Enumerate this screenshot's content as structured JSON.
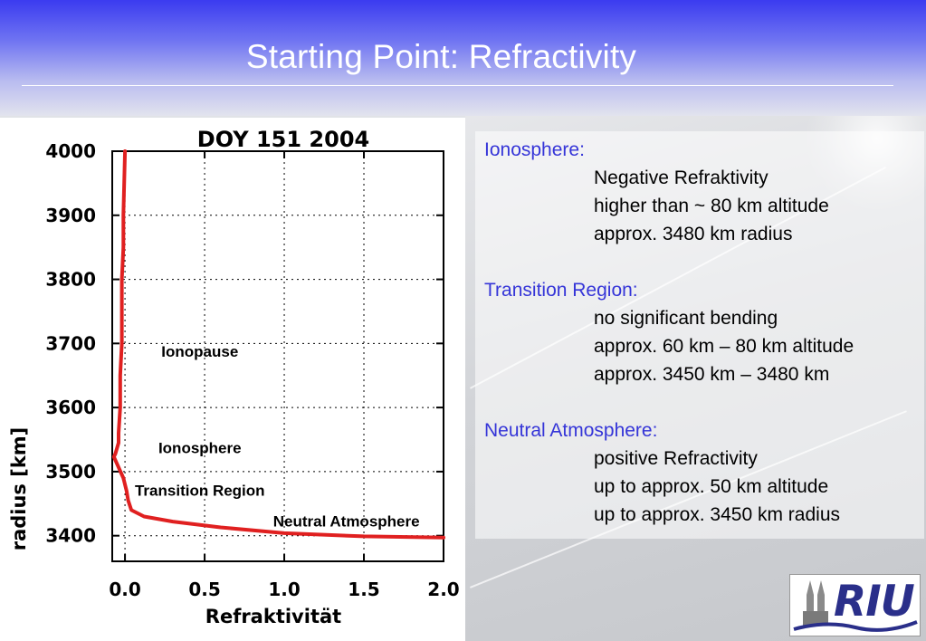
{
  "slide": {
    "title": "Starting Point: Refractivity"
  },
  "chart_data": {
    "type": "line",
    "title": "DOY 151    2004",
    "xlabel": "Refraktivität",
    "ylabel": "radius [km]",
    "xlim": [
      -0.08,
      2.0
    ],
    "ylim": [
      3360,
      4000
    ],
    "xticks": [
      "0.0",
      "0.5",
      "1.0",
      "1.5",
      "2.0"
    ],
    "xtick_values": [
      0.0,
      0.5,
      1.0,
      1.5,
      2.0
    ],
    "yticks": [
      "3400",
      "3500",
      "3600",
      "3700",
      "3800",
      "3900",
      "4000"
    ],
    "ytick_values": [
      3400,
      3500,
      3600,
      3700,
      3800,
      3900,
      4000
    ],
    "grid": true,
    "series": [
      {
        "color": "#e02020",
        "x": [
          2.0,
          1.5,
          1.0,
          0.6,
          0.3,
          0.12,
          0.04,
          0.02,
          0.01,
          -0.01,
          -0.07,
          -0.06,
          -0.04,
          -0.04,
          -0.03,
          -0.03,
          -0.02,
          -0.02,
          -0.01,
          -0.01,
          0.0
        ],
        "y": [
          3397,
          3399,
          3404,
          3413,
          3422,
          3430,
          3440,
          3455,
          3470,
          3490,
          3523,
          3528,
          3545,
          3560,
          3600,
          3650,
          3700,
          3800,
          3850,
          3900,
          4000
        ]
      }
    ],
    "annotations": [
      {
        "text": "Ionopause",
        "x": 0.47,
        "y": 3688
      },
      {
        "text": "Ionosphere",
        "x": 0.47,
        "y": 3537
      },
      {
        "text": "Transition Region",
        "x": 0.47,
        "y": 3471
      },
      {
        "text": "Neutral Atmosphere",
        "x": 1.39,
        "y": 3423
      }
    ]
  },
  "description": {
    "sections": [
      {
        "heading": "Ionosphere:",
        "lines": [
          "Negative Refraktivity",
          "higher than  ~ 80 km altitude",
          "approx. 3480 km radius"
        ]
      },
      {
        "heading": "Transition Region:",
        "lines": [
          "no significant bending",
          "approx. 60 km – 80 km altitude",
          "approx. 3450 km – 3480 km"
        ]
      },
      {
        "heading": "Neutral Atmosphere:",
        "lines": [
          "positive Refractivity",
          "up to approx. 50 km altitude",
          "up to approx. 3450 km radius"
        ]
      }
    ]
  },
  "logo": {
    "text": "RIU",
    "icon": "cathedral-icon"
  }
}
